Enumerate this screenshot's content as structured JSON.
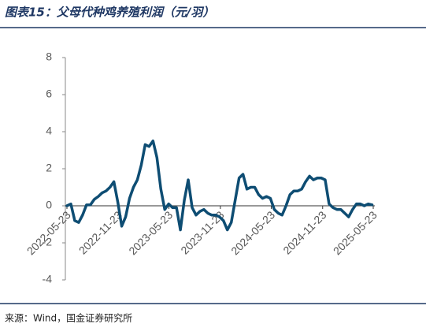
{
  "chart_data": {
    "type": "line",
    "title": "图表15：父母代种鸡养殖利润（元/羽）",
    "source": "来源：Wind，国金证券研究所",
    "x": [
      "2022-05-23",
      "2022-06-06",
      "2022-06-20",
      "2022-07-04",
      "2022-07-18",
      "2022-08-01",
      "2022-08-15",
      "2022-08-29",
      "2022-09-12",
      "2022-09-26",
      "2022-10-10",
      "2022-10-24",
      "2022-11-07",
      "2022-11-21",
      "2022-12-05",
      "2022-12-19",
      "2023-01-02",
      "2023-01-16",
      "2023-01-30",
      "2023-02-13",
      "2023-02-27",
      "2023-03-13",
      "2023-03-27",
      "2023-04-10",
      "2023-04-24",
      "2023-05-08",
      "2023-05-22",
      "2023-06-05",
      "2023-06-19",
      "2023-07-03",
      "2023-07-17",
      "2023-07-31",
      "2023-08-14",
      "2023-08-28",
      "2023-09-11",
      "2023-09-25",
      "2023-10-09",
      "2023-10-23",
      "2023-11-06",
      "2023-11-20",
      "2023-12-04",
      "2023-12-18",
      "2024-01-01",
      "2024-01-15",
      "2024-01-29",
      "2024-02-12",
      "2024-02-26",
      "2024-03-11",
      "2024-03-25",
      "2024-04-08",
      "2024-04-22",
      "2024-05-06",
      "2024-05-20",
      "2024-06-03",
      "2024-06-17",
      "2024-07-01",
      "2024-07-15",
      "2024-07-29",
      "2024-08-12",
      "2024-08-26",
      "2024-09-09",
      "2024-09-23",
      "2024-10-07",
      "2024-10-21",
      "2024-11-04",
      "2024-11-18",
      "2024-12-02",
      "2024-12-16",
      "2024-12-30",
      "2025-01-13",
      "2025-01-27",
      "2025-02-10",
      "2025-02-24",
      "2025-03-10",
      "2025-03-24",
      "2025-04-07",
      "2025-04-21",
      "2025-05-05",
      "2025-05-19"
    ],
    "series": [
      {
        "color": "#0e4d73",
        "values": [
          0,
          0.1,
          -0.8,
          -0.9,
          -0.5,
          0.05,
          0.05,
          0.35,
          0.5,
          0.7,
          0.8,
          1.0,
          1.3,
          0.2,
          -1.1,
          -0.6,
          0.4,
          1.0,
          1.4,
          2.2,
          3.3,
          3.2,
          3.5,
          2.6,
          0.9,
          -0.2,
          0.1,
          -0.1,
          -0.1,
          -1.3,
          0.3,
          1.4,
          -0.1,
          -0.5,
          -0.3,
          -0.2,
          -0.4,
          -0.5,
          -0.5,
          -0.6,
          -0.8,
          -1.3,
          -0.9,
          0.3,
          1.5,
          1.7,
          0.9,
          1.0,
          1.0,
          0.6,
          0.4,
          0.5,
          0.4,
          -0.2,
          -0.4,
          -0.5,
          0.0,
          0.6,
          0.8,
          0.8,
          0.9,
          1.3,
          1.6,
          1.4,
          1.5,
          1.5,
          1.4,
          0.1,
          -0.1,
          -0.2,
          -0.2,
          -0.4,
          -0.6,
          -0.2,
          0.1,
          0.1,
          0.0,
          0.1,
          0.05
        ]
      }
    ],
    "xlim": [
      "2022-05-23",
      "2025-05-23"
    ],
    "xticks": [
      "2022-05-23",
      "2022-11-23",
      "2023-05-23",
      "2023-11-23",
      "2024-05-23",
      "2024-11-23",
      "2025-05-23"
    ],
    "ylim": [
      -4,
      8
    ],
    "yticks": [
      -4,
      -2,
      0,
      2,
      4,
      6,
      8
    ]
  }
}
